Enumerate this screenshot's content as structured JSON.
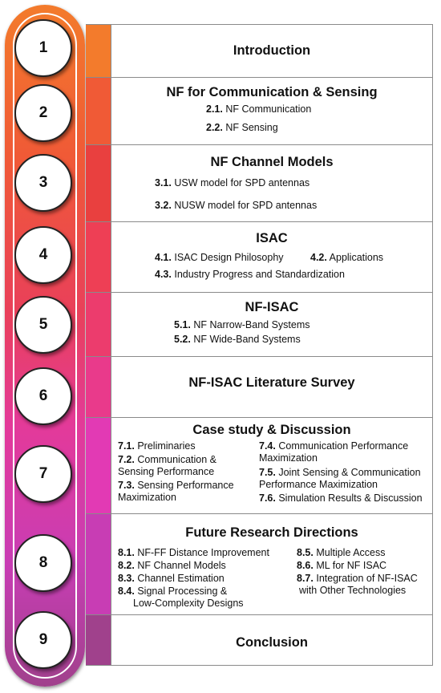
{
  "colors": {
    "strip_1": "#f37b2c",
    "strip_2": "#f05a36",
    "strip_3": "#e9403f",
    "strip_4": "#ee3f55",
    "strip_5": "#ec3c6d",
    "strip_6": "#e93a8b",
    "strip_7": "#e23ab4",
    "strip_8": "#c83db4",
    "strip_9": "#a0418c"
  },
  "steps": [
    "1",
    "2",
    "3",
    "4",
    "5",
    "6",
    "7",
    "8",
    "9"
  ],
  "sections": {
    "s1": {
      "title": "Introduction"
    },
    "s2": {
      "title": "NF for Communication & Sensing",
      "items": [
        {
          "num": "2.1.",
          "text": "NF Communication"
        },
        {
          "num": "2.2.",
          "text": "NF Sensing"
        }
      ]
    },
    "s3": {
      "title": "NF Channel Models",
      "items": [
        {
          "num": "3.1.",
          "text": "USW model for SPD antennas"
        },
        {
          "num": "3.2.",
          "text": "NUSW model for SPD antennas"
        }
      ]
    },
    "s4": {
      "title": "ISAC",
      "items": [
        {
          "num": "4.1.",
          "text": "ISAC Design Philosophy"
        },
        {
          "num": "4.2.",
          "text": "Applications"
        },
        {
          "num": "4.3.",
          "text": "Industry Progress and Standardization"
        }
      ]
    },
    "s5": {
      "title": "NF-ISAC",
      "items": [
        {
          "num": "5.1.",
          "text": "NF Narrow-Band Systems"
        },
        {
          "num": "5.2.",
          "text": "NF Wide-Band Systems"
        }
      ]
    },
    "s6": {
      "title": "NF-ISAC Literature Survey"
    },
    "s7": {
      "title": "Case study & Discussion",
      "items": [
        {
          "num": "7.1.",
          "text": "Preliminaries"
        },
        {
          "num": "7.2.",
          "text": "Communication &",
          "text2": "Sensing Performance"
        },
        {
          "num": "7.3.",
          "text": "Sensing Performance",
          "text2": "Maximization"
        },
        {
          "num": "7.4.",
          "text": "Communication Performance",
          "text2": "Maximization"
        },
        {
          "num": "7.5.",
          "text": "Joint Sensing & Communication",
          "text2": "Performance Maximization"
        },
        {
          "num": "7.6.",
          "text": "Simulation Results & Discussion"
        }
      ]
    },
    "s8": {
      "title": "Future Research Directions",
      "items": [
        {
          "num": "8.1.",
          "text": "NF-FF Distance Improvement"
        },
        {
          "num": "8.2.",
          "text": "NF Channel Models"
        },
        {
          "num": "8.3.",
          "text": "Channel Estimation"
        },
        {
          "num": "8.4.",
          "text": "Signal Processing &",
          "text2": "Low-Complexity Designs"
        },
        {
          "num": "8.5.",
          "text": "Multiple Access"
        },
        {
          "num": "8.6.",
          "text": "ML for NF ISAC"
        },
        {
          "num": "8.7.",
          "text": "Integration of NF-ISAC",
          "text2": "with Other Technologies"
        }
      ]
    },
    "s9": {
      "title": "Conclusion"
    }
  }
}
